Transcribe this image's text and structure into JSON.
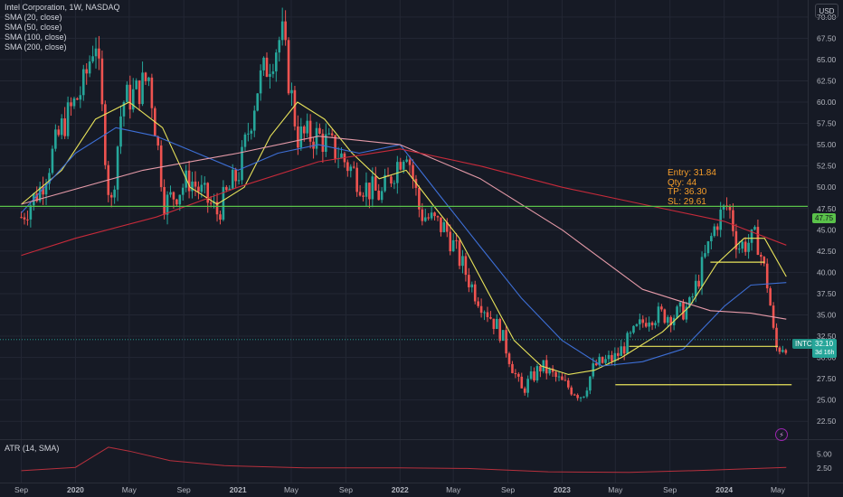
{
  "legend": {
    "title": "Intel Corporation, 1W, NASDAQ",
    "sma20": "SMA (20, close)",
    "sma50": "SMA (50, close)",
    "sma100": "SMA (100, close)",
    "sma200": "SMA (200, close)"
  },
  "currency_button": "USD",
  "trade": {
    "entry": "Entry: 31.84",
    "qty": "Qty: 44",
    "tp": "TP: 36.30",
    "sl": "SL: 29.61"
  },
  "price_tags": {
    "level_label": "47.75",
    "ticker": "INTC",
    "last_price": "32.10",
    "countdown": "3d 16h"
  },
  "atr": {
    "label": "ATR (14, SMA)"
  },
  "colors": {
    "background": "#161a25",
    "up": "#26a69a",
    "down": "#ef5350",
    "sma20": "#e8e35a",
    "sma50": "#3d6fd6",
    "sma100": "#e59aa8",
    "sma200": "#c62a3a",
    "hline_green": "#5ac24a",
    "hline_yellow": "#e8e35a",
    "trade_text": "#f59d2a",
    "atr": "#b7303d"
  },
  "icons": {
    "alert": "lightning-icon"
  },
  "chart_data": {
    "type": "candlestick",
    "symbol": "INTC",
    "interval": "1W",
    "x_tick_labels": [
      "Sep",
      "2020",
      "May",
      "Sep",
      "2021",
      "May",
      "Sep",
      "2022",
      "May",
      "Sep",
      "2023",
      "May",
      "Sep",
      "2024",
      "May"
    ],
    "y_tick_labels": [
      "70.00",
      "67.50",
      "65.00",
      "62.50",
      "60.00",
      "57.50",
      "55.00",
      "52.50",
      "50.00",
      "47.50",
      "45.00",
      "42.50",
      "40.00",
      "37.50",
      "35.00",
      "32.50",
      "30.00",
      "27.50",
      "25.00",
      "22.50"
    ],
    "ylim": [
      20.4,
      72.0
    ],
    "grid": true,
    "horizontal_levels": [
      {
        "price": 47.75,
        "color": "green"
      },
      {
        "price": 41.2,
        "color": "yellow",
        "from": "2023-12",
        "to": "2024-04"
      },
      {
        "price": 31.3,
        "color": "yellow",
        "from": "2023-06",
        "to": "2024-05"
      },
      {
        "price": 26.8,
        "color": "yellow",
        "from": "2023-05",
        "to": "2024-06"
      }
    ],
    "price_path": [
      [
        "2019-09-01",
        46.5
      ],
      [
        "2019-10-15",
        50
      ],
      [
        "2019-12-01",
        57
      ],
      [
        "2020-01-20",
        62
      ],
      [
        "2020-02-15",
        68
      ],
      [
        "2020-03-20",
        47
      ],
      [
        "2020-04-15",
        60
      ],
      [
        "2020-05-15",
        61
      ],
      [
        "2020-06-15",
        63
      ],
      [
        "2020-07-20",
        48
      ],
      [
        "2020-09-15",
        51
      ],
      [
        "2020-11-15",
        47
      ],
      [
        "2021-01-05",
        52
      ],
      [
        "2021-02-15",
        62
      ],
      [
        "2021-04-10",
        68
      ],
      [
        "2021-05-15",
        56
      ],
      [
        "2021-07-01",
        56
      ],
      [
        "2021-08-15",
        54
      ],
      [
        "2021-10-15",
        50
      ],
      [
        "2021-11-20",
        49
      ],
      [
        "2022-01-15",
        55
      ],
      [
        "2022-02-15",
        47
      ],
      [
        "2022-04-15",
        45
      ],
      [
        "2022-06-15",
        38
      ],
      [
        "2022-08-15",
        33
      ],
      [
        "2022-10-01",
        26
      ],
      [
        "2022-11-15",
        29
      ],
      [
        "2023-01-01",
        27
      ],
      [
        "2023-02-15",
        25.5
      ],
      [
        "2023-03-15",
        29
      ],
      [
        "2023-05-01",
        30
      ],
      [
        "2023-07-15",
        35
      ],
      [
        "2023-09-15",
        35
      ],
      [
        "2023-10-15",
        36
      ],
      [
        "2023-12-15",
        46
      ],
      [
        "2024-01-10",
        48
      ],
      [
        "2024-02-01",
        43
      ],
      [
        "2024-03-15",
        44
      ],
      [
        "2024-04-10",
        38
      ],
      [
        "2024-04-25",
        31
      ],
      [
        "2024-05-20",
        31.6
      ]
    ],
    "series": [
      {
        "name": "SMA (20, close)",
        "values": [
          [
            "2019-09-01",
            48
          ],
          [
            "2019-12-01",
            52
          ],
          [
            "2020-02-15",
            58
          ],
          [
            "2020-05-01",
            60
          ],
          [
            "2020-07-15",
            57
          ],
          [
            "2020-09-15",
            50
          ],
          [
            "2020-11-15",
            48
          ],
          [
            "2021-01-15",
            50
          ],
          [
            "2021-03-15",
            56
          ],
          [
            "2021-05-15",
            60
          ],
          [
            "2021-07-15",
            58
          ],
          [
            "2021-09-15",
            54
          ],
          [
            "2021-11-15",
            51
          ],
          [
            "2022-01-15",
            52
          ],
          [
            "2022-03-15",
            48
          ],
          [
            "2022-05-15",
            44
          ],
          [
            "2022-07-15",
            38
          ],
          [
            "2022-09-15",
            32
          ],
          [
            "2022-11-15",
            29
          ],
          [
            "2023-01-15",
            28
          ],
          [
            "2023-03-15",
            28.5
          ],
          [
            "2023-05-15",
            30
          ],
          [
            "2023-08-15",
            33
          ],
          [
            "2023-10-15",
            36
          ],
          [
            "2023-12-15",
            41
          ],
          [
            "2024-02-15",
            44
          ],
          [
            "2024-04-01",
            44
          ],
          [
            "2024-05-20",
            39.5
          ]
        ]
      },
      {
        "name": "SMA (50, close)",
        "values": [
          [
            "2019-09-01",
            47
          ],
          [
            "2020-01-01",
            54
          ],
          [
            "2020-04-01",
            57
          ],
          [
            "2020-07-01",
            56
          ],
          [
            "2020-10-01",
            54
          ],
          [
            "2021-01-01",
            52
          ],
          [
            "2021-04-01",
            54
          ],
          [
            "2021-07-01",
            55
          ],
          [
            "2021-10-01",
            54
          ],
          [
            "2022-01-01",
            55
          ],
          [
            "2022-04-01",
            49
          ],
          [
            "2022-07-01",
            43
          ],
          [
            "2022-10-01",
            37
          ],
          [
            "2023-01-01",
            32
          ],
          [
            "2023-04-01",
            29
          ],
          [
            "2023-07-01",
            29.5
          ],
          [
            "2023-10-01",
            31
          ],
          [
            "2024-01-01",
            36
          ],
          [
            "2024-03-01",
            38.5
          ],
          [
            "2024-05-20",
            38.8
          ]
        ]
      },
      {
        "name": "SMA (100, close)",
        "values": [
          [
            "2019-09-01",
            48
          ],
          [
            "2020-06-01",
            52
          ],
          [
            "2021-01-01",
            54
          ],
          [
            "2021-07-01",
            56
          ],
          [
            "2022-01-01",
            55
          ],
          [
            "2022-07-01",
            51
          ],
          [
            "2023-01-01",
            45
          ],
          [
            "2023-07-01",
            38
          ],
          [
            "2023-12-01",
            35.5
          ],
          [
            "2024-03-01",
            35.2
          ],
          [
            "2024-05-20",
            34.5
          ]
        ]
      },
      {
        "name": "SMA (200, close)",
        "values": [
          [
            "2019-09-01",
            42
          ],
          [
            "2020-01-01",
            44
          ],
          [
            "2020-07-01",
            46.5
          ],
          [
            "2021-01-01",
            50
          ],
          [
            "2021-07-01",
            53
          ],
          [
            "2022-01-01",
            54.5
          ],
          [
            "2022-07-01",
            52.5
          ],
          [
            "2023-01-01",
            50
          ],
          [
            "2023-07-01",
            48
          ],
          [
            "2024-01-01",
            46
          ],
          [
            "2024-05-20",
            43.2
          ]
        ]
      }
    ],
    "atr": {
      "label": "ATR (14, SMA)",
      "y_tick_labels": [
        "5.00",
        "2.50"
      ],
      "values": [
        [
          "2019-09-01",
          2.0
        ],
        [
          "2020-01-01",
          2.6
        ],
        [
          "2020-03-15",
          6.2
        ],
        [
          "2020-05-01",
          5.5
        ],
        [
          "2020-08-01",
          3.8
        ],
        [
          "2020-12-01",
          2.9
        ],
        [
          "2021-06-01",
          2.5
        ],
        [
          "2022-01-01",
          2.5
        ],
        [
          "2022-06-01",
          2.4
        ],
        [
          "2022-12-01",
          1.8
        ],
        [
          "2023-06-01",
          1.7
        ],
        [
          "2023-12-01",
          2.1
        ],
        [
          "2024-05-20",
          2.6
        ]
      ]
    }
  }
}
